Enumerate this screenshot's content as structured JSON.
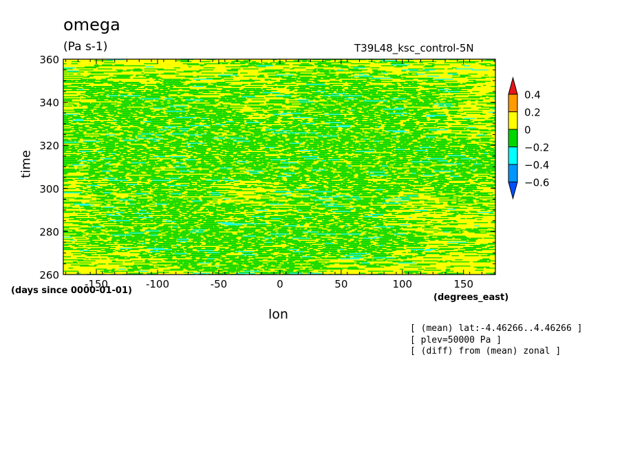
{
  "header": {
    "title": "omega",
    "units": "(Pa s-1)",
    "run_name": "T39L48_ksc_control-5N"
  },
  "notes": [
    "[ (mean) lat:-4.46266..4.46266 ]",
    "[ plev=50000 Pa ]",
    "[ (diff) from (mean) zonal ]"
  ],
  "chart_data": {
    "type": "heatmap",
    "xlabel": "lon",
    "ylabel": "time",
    "x_units": "(degrees_east)",
    "y_units": "(days since 0000-01-01)",
    "xlim": [
      -177,
      176
    ],
    "ylim": [
      260,
      360
    ],
    "x_ticks": [
      -150,
      -100,
      -50,
      0,
      50,
      100,
      150
    ],
    "y_ticks": [
      260,
      280,
      300,
      320,
      340,
      360
    ],
    "colorbar": {
      "levels": [
        0.4,
        0.2,
        0,
        -0.2,
        -0.4,
        -0.6
      ],
      "colors": [
        "#e8141c",
        "#ff9a00",
        "#ffff00",
        "#00d600",
        "#00ffff",
        "#0096ff",
        "#0050ff"
      ]
    },
    "dominant_colors": [
      "#ffff00",
      "#00d600",
      "#00ffff"
    ]
  }
}
